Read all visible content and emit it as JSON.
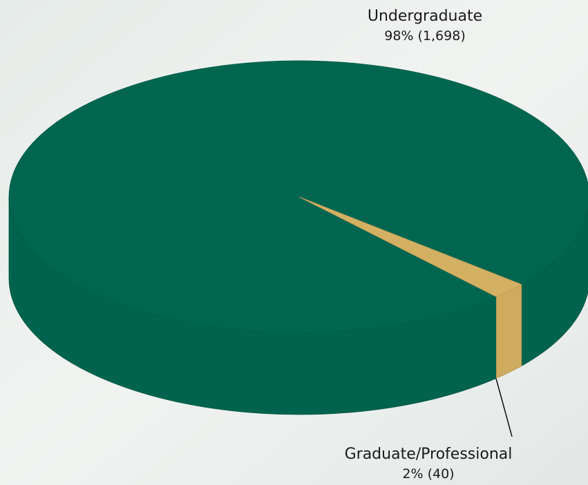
{
  "chart_data": {
    "type": "pie",
    "categories": [
      "Undergraduate",
      "Graduate/Professional"
    ],
    "values": [
      98,
      2
    ],
    "value_labels": [
      "98% (1,698)",
      "2% (40)"
    ],
    "colors": [
      "#00664f",
      "#d4b062"
    ]
  }
}
